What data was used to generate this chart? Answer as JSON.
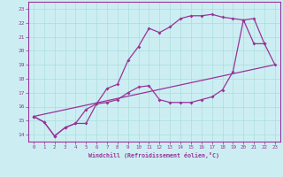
{
  "xlabel": "Windchill (Refroidissement éolien,°C)",
  "bg_color": "#cceef2",
  "grid_color": "#aadddd",
  "line_color": "#993399",
  "xlim": [
    -0.5,
    23.5
  ],
  "ylim": [
    13.5,
    23.5
  ],
  "yticks": [
    14,
    15,
    16,
    17,
    18,
    19,
    20,
    21,
    22,
    23
  ],
  "xticks": [
    0,
    1,
    2,
    3,
    4,
    5,
    6,
    7,
    8,
    9,
    10,
    11,
    12,
    13,
    14,
    15,
    16,
    17,
    18,
    19,
    20,
    21,
    22,
    23
  ],
  "line1_x": [
    0,
    1,
    2,
    3,
    4,
    5,
    6,
    7,
    8,
    9,
    10,
    11,
    12,
    13,
    14,
    15,
    16,
    17,
    18,
    19,
    20,
    21,
    22
  ],
  "line1_y": [
    15.3,
    14.9,
    13.9,
    14.5,
    14.8,
    15.8,
    16.2,
    17.3,
    17.6,
    19.3,
    20.3,
    21.6,
    21.3,
    21.7,
    22.3,
    22.5,
    22.5,
    22.6,
    22.4,
    22.3,
    22.2,
    20.5,
    20.5
  ],
  "line2_x": [
    0,
    1,
    2,
    3,
    4,
    5,
    6,
    7,
    8,
    9,
    10,
    11,
    12,
    13,
    14,
    15,
    16,
    17,
    18,
    19,
    20,
    21,
    22,
    23
  ],
  "line2_y": [
    15.3,
    14.9,
    13.9,
    14.5,
    14.8,
    14.8,
    16.2,
    16.3,
    16.5,
    17.0,
    17.4,
    17.5,
    16.5,
    16.3,
    16.3,
    16.3,
    16.5,
    16.7,
    17.2,
    18.5,
    22.2,
    22.3,
    20.5,
    19.0
  ],
  "line3_x": [
    0,
    23
  ],
  "line3_y": [
    15.3,
    19.0
  ]
}
